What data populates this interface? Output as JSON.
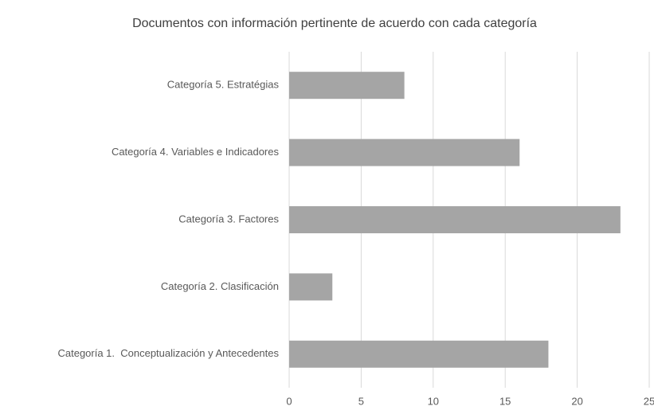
{
  "chart_data": {
    "type": "bar",
    "orientation": "horizontal",
    "title": "Documentos con información pertinente de acuerdo con cada categoría",
    "categories": [
      "Categoría 1.  Conceptualización y Antecedentes",
      "Categoría 2. Clasificación",
      "Categoría 3. Factores",
      "Categoría 4. Variables e Indicadores",
      "Categoría 5. Estratégias"
    ],
    "values": [
      18,
      3,
      23,
      16,
      8
    ],
    "color": "#a5a5a5",
    "xlim": [
      0,
      25
    ],
    "xticks": [
      0,
      5,
      10,
      15,
      20,
      25
    ],
    "grid": true
  }
}
